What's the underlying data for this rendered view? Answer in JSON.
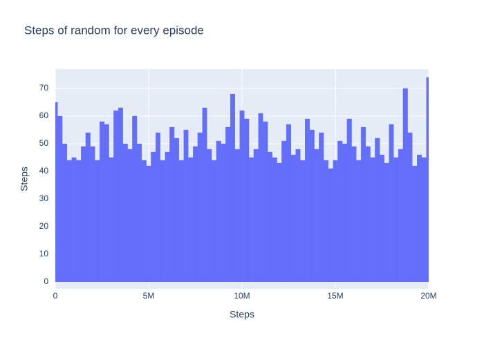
{
  "chart_data": {
    "type": "bar",
    "title": "Steps of random for every episode",
    "x_label": "Steps",
    "y_label": "Steps",
    "x": [
      0,
      250000,
      500000,
      750000,
      1000000,
      1250000,
      1500000,
      1750000,
      2000000,
      2250000,
      2500000,
      2750000,
      3000000,
      3250000,
      3500000,
      3750000,
      4000000,
      4250000,
      4500000,
      4750000,
      5000000,
      5250000,
      5500000,
      5750000,
      6000000,
      6250000,
      6500000,
      6750000,
      7000000,
      7250000,
      7500000,
      7750000,
      8000000,
      8250000,
      8500000,
      8750000,
      9000000,
      9250000,
      9500000,
      9750000,
      10000000,
      10250000,
      10500000,
      10750000,
      11000000,
      11250000,
      11500000,
      11750000,
      12000000,
      12250000,
      12500000,
      12750000,
      13000000,
      13250000,
      13500000,
      13750000,
      14000000,
      14250000,
      14500000,
      14750000,
      15000000,
      15250000,
      15500000,
      15750000,
      16000000,
      16250000,
      16500000,
      16750000,
      17000000,
      17250000,
      17500000,
      17750000,
      18000000,
      18250000,
      18500000,
      18750000,
      19000000,
      19250000,
      19500000,
      19750000,
      20000000
    ],
    "values": [
      65,
      60,
      50,
      44,
      45,
      44,
      49,
      54,
      49,
      44,
      58,
      57,
      45,
      62,
      63,
      50,
      48,
      60,
      50,
      44,
      42,
      47,
      54,
      44,
      47,
      56,
      52,
      44,
      55,
      45,
      49,
      54,
      63,
      48,
      44,
      51,
      50,
      56,
      68,
      48,
      62,
      59,
      45,
      48,
      61,
      58,
      47,
      45,
      43,
      51,
      57,
      46,
      48,
      44,
      59,
      55,
      48,
      54,
      44,
      41,
      44,
      51,
      50,
      59,
      49,
      44,
      56,
      49,
      45,
      52,
      46,
      43,
      57,
      45,
      48,
      70,
      54,
      42,
      46,
      45,
      74
    ],
    "color": "#636efa",
    "xlim": [
      0,
      20000000
    ],
    "xticks": [
      0,
      {
        "value": 5000000,
        "label": "5M"
      },
      {
        "value": 10000000,
        "label": "10M"
      },
      {
        "value": 15000000,
        "label": "15M"
      },
      {
        "value": 20000000,
        "label": "20M"
      }
    ],
    "ylim": [
      -2.5,
      77
    ],
    "yticks": [
      0,
      10,
      20,
      30,
      40,
      50,
      60,
      70
    ],
    "grid": true
  }
}
